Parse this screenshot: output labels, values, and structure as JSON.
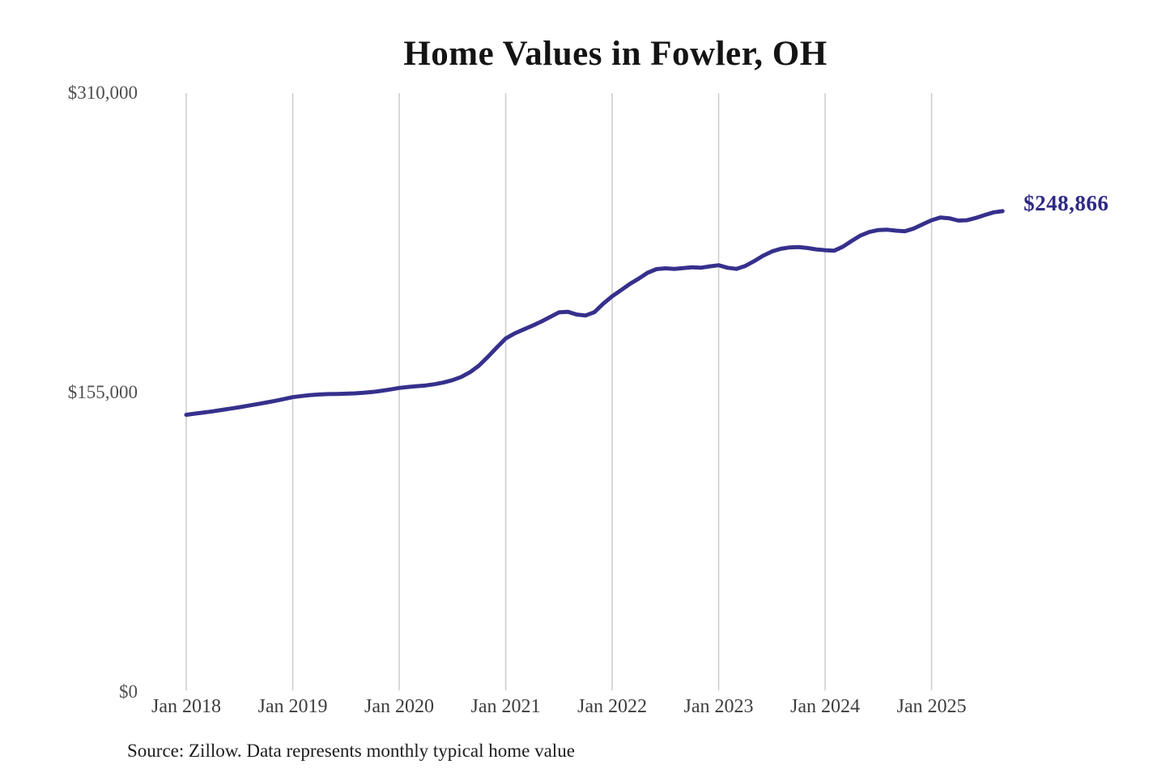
{
  "chart_data": {
    "type": "line",
    "title": "Home Values in Fowler, OH",
    "series_name": "Monthly typical home value",
    "unit": "USD",
    "line_color": "#36308c",
    "end_label_color": "#2e2a84",
    "grid_color": "#cccccc",
    "grid": "vertical-only",
    "legend": "none",
    "ylim": [
      0,
      310000
    ],
    "end_label": "$248,866",
    "end_value": 248866,
    "source_note": "Source: Zillow. Data represents monthly typical home value",
    "y_ticks": [
      {
        "value": 0,
        "label": "$0"
      },
      {
        "value": 155000,
        "label": "$155,000"
      },
      {
        "value": 310000,
        "label": "$310,000"
      }
    ],
    "x_ticks": [
      {
        "month": "2018-01",
        "label": "Jan 2018"
      },
      {
        "month": "2019-01",
        "label": "Jan 2019"
      },
      {
        "month": "2020-01",
        "label": "Jan 2020"
      },
      {
        "month": "2021-01",
        "label": "Jan 2021"
      },
      {
        "month": "2022-01",
        "label": "Jan 2022"
      },
      {
        "month": "2023-01",
        "label": "Jan 2023"
      },
      {
        "month": "2024-01",
        "label": "Jan 2024"
      },
      {
        "month": "2025-01",
        "label": "Jan 2025"
      }
    ],
    "x": [
      "2018-01",
      "2018-02",
      "2018-03",
      "2018-04",
      "2018-05",
      "2018-06",
      "2018-07",
      "2018-08",
      "2018-09",
      "2018-10",
      "2018-11",
      "2018-12",
      "2019-01",
      "2019-02",
      "2019-03",
      "2019-04",
      "2019-05",
      "2019-06",
      "2019-07",
      "2019-08",
      "2019-09",
      "2019-10",
      "2019-11",
      "2019-12",
      "2020-01",
      "2020-02",
      "2020-03",
      "2020-04",
      "2020-05",
      "2020-06",
      "2020-07",
      "2020-08",
      "2020-09",
      "2020-10",
      "2020-11",
      "2020-12",
      "2021-01",
      "2021-02",
      "2021-03",
      "2021-04",
      "2021-05",
      "2021-06",
      "2021-07",
      "2021-08",
      "2021-09",
      "2021-10",
      "2021-11",
      "2021-12",
      "2022-01",
      "2022-02",
      "2022-03",
      "2022-04",
      "2022-05",
      "2022-06",
      "2022-07",
      "2022-08",
      "2022-09",
      "2022-10",
      "2022-11",
      "2022-12",
      "2023-01",
      "2023-02",
      "2023-03",
      "2023-04",
      "2023-05",
      "2023-06",
      "2023-07",
      "2023-08",
      "2023-09",
      "2023-10",
      "2023-11",
      "2023-12",
      "2024-01",
      "2024-02",
      "2024-03",
      "2024-04",
      "2024-05",
      "2024-06",
      "2024-07",
      "2024-08",
      "2024-09",
      "2024-10",
      "2024-11",
      "2024-12",
      "2025-01",
      "2025-02",
      "2025-03",
      "2025-04",
      "2025-05",
      "2025-06",
      "2025-07",
      "2025-08",
      "2025-09"
    ],
    "values": [
      143500,
      144100,
      144700,
      145300,
      146000,
      146700,
      147400,
      148200,
      149000,
      149800,
      150700,
      151600,
      152600,
      153200,
      153700,
      154000,
      154200,
      154300,
      154400,
      154600,
      154900,
      155300,
      155900,
      156600,
      157400,
      157900,
      158300,
      158700,
      159300,
      160200,
      161400,
      163100,
      165600,
      169000,
      173500,
      178300,
      183000,
      185600,
      187600,
      189600,
      191700,
      194100,
      196500,
      196800,
      195400,
      194900,
      196600,
      201000,
      204800,
      208000,
      211200,
      214000,
      217000,
      218900,
      219300,
      219000,
      219400,
      219800,
      219600,
      220300,
      220900,
      219600,
      219000,
      220500,
      223000,
      225800,
      228000,
      229400,
      230100,
      230300,
      229800,
      229100,
      228700,
      228400,
      230500,
      233500,
      236300,
      238100,
      239100,
      239300,
      238800,
      238500,
      239900,
      242100,
      244200,
      245600,
      245200,
      244000,
      244200,
      245400,
      246900,
      248300,
      248866
    ]
  }
}
